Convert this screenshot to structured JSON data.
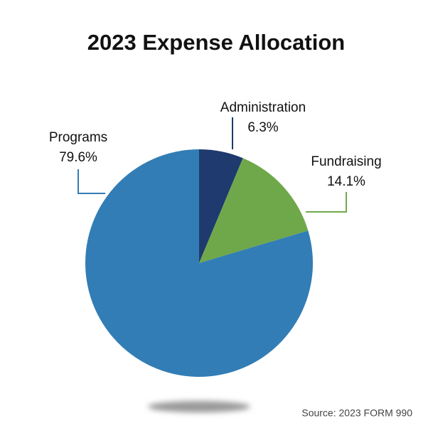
{
  "chart_data": {
    "type": "pie",
    "title": "2023 Expense Allocation",
    "source": "Source: 2023 FORM 990",
    "categories": [
      "Administration",
      "Fundraising",
      "Programs"
    ],
    "values": [
      6.3,
      14.1,
      79.6
    ],
    "value_labels": [
      "6.3%",
      "14.1%",
      "79.6%"
    ],
    "colors": [
      "#1f3a6e",
      "#6fa84a",
      "#327db5"
    ]
  }
}
